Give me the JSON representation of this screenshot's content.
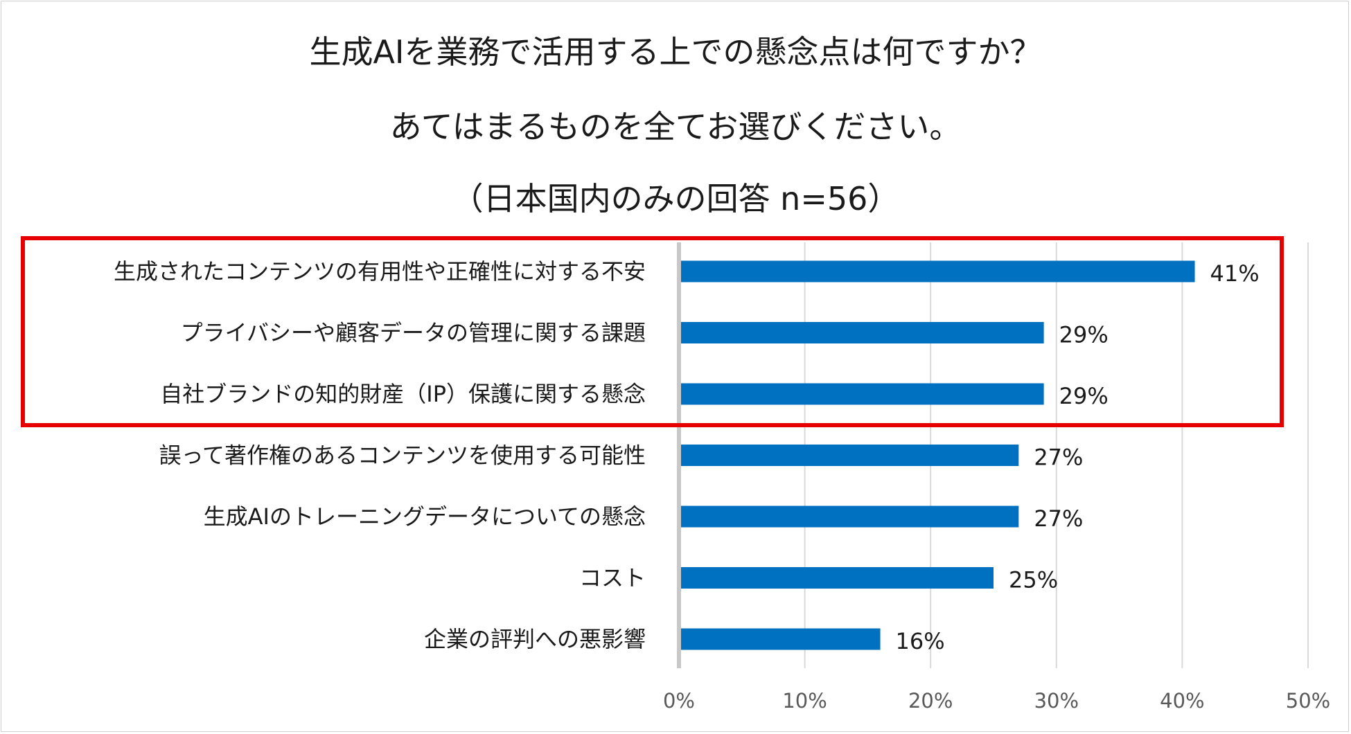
{
  "chart_data": {
    "type": "bar",
    "orientation": "horizontal",
    "title_lines": [
      "生成AIを業務で活用する上での懸念点は何ですか？",
      "あてはまるものを全てお選びください。",
      "（日本国内のみの回答 n=56）"
    ],
    "categories": [
      "生成されたコンテンツの有用性や正確性に対する不安",
      "プライバシーや顧客データの管理に関する課題",
      "自社ブランドの知的財産（IP）保護に関する懸念",
      "誤って著作権のあるコンテンツを使用する可能性",
      "生成AIのトレーニングデータについての懸念",
      "コスト",
      "企業の評判への悪影響"
    ],
    "values": [
      41,
      29,
      29,
      27,
      27,
      25,
      16
    ],
    "value_labels": [
      "41%",
      "29%",
      "29%",
      "27%",
      "27%",
      "25%",
      "16%"
    ],
    "xlim": [
      0,
      50
    ],
    "x_ticks": [
      0,
      10,
      20,
      30,
      40,
      50
    ],
    "x_tick_labels": [
      "0%",
      "10%",
      "20%",
      "30%",
      "40%",
      "50%"
    ],
    "grid": true,
    "highlighted_categories": [
      0,
      1,
      2
    ],
    "colors": {
      "bar": "#0070c0",
      "highlight_box": "#e60000",
      "grid": "#d9d9d9",
      "axis": "#c8c8c8"
    }
  }
}
